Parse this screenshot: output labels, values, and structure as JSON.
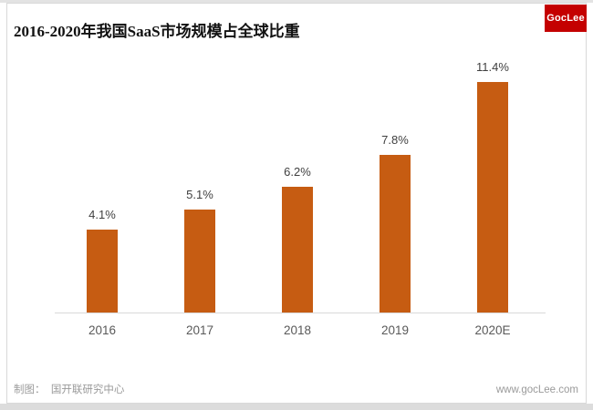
{
  "header": {
    "title": "2016-2020年我国SaaS市场规模占全球比重",
    "logo_text": "GocLee"
  },
  "footer": {
    "credit_label": "制图：",
    "credit_value": "国开联研究中心",
    "website": "www.gocLee.com"
  },
  "colors": {
    "bar": "#c65c12",
    "logo_bg": "#c40000",
    "logo_text": "#ffffff",
    "axis_line": "#d9d9d9",
    "value_label": "#3f3f3f",
    "tick_label": "#595959",
    "footer_text": "#9a9a9a",
    "title_text": "#111111"
  },
  "chart_data": {
    "type": "bar",
    "title": "2016-2020年我国SaaS市场规模占全球比重",
    "categories": [
      "2016",
      "2017",
      "2018",
      "2019",
      "2020E"
    ],
    "values": [
      4.1,
      5.1,
      6.2,
      7.8,
      11.4
    ],
    "value_labels": [
      "4.1%",
      "5.1%",
      "6.2%",
      "7.8%",
      "11.4%"
    ],
    "xlabel": "",
    "ylabel": "",
    "ylim": [
      0,
      12
    ],
    "grid": false,
    "legend": false,
    "bar_color": "#c65c12"
  }
}
